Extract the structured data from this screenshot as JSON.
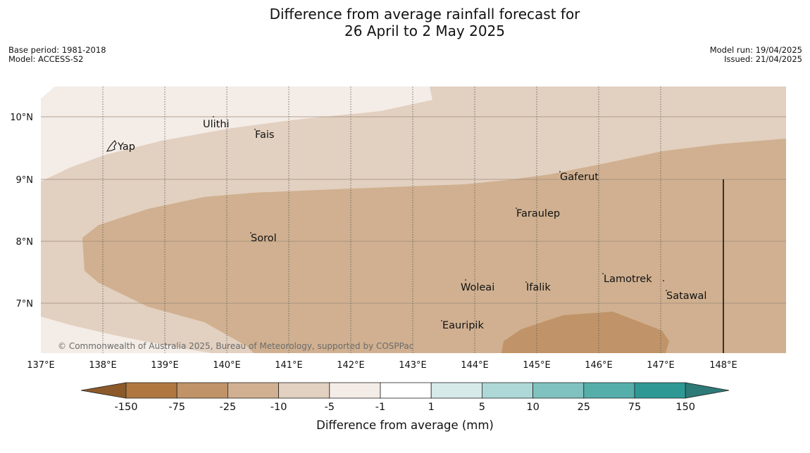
{
  "title_line1": "Difference from average rainfall forecast for",
  "title_line2": "26 April to 2 May 2025",
  "base_period": "Base period: 1981-2018",
  "model": "Model: ACCESS-S2",
  "model_run": "Model run: 19/04/2025",
  "issued": "Issued: 21/04/2025",
  "copyright": "© Commonwealth of Australia 2025, Bureau of Meteorology, supported by COSPPac",
  "map": {
    "lon_range": [
      137,
      149
    ],
    "lat_range": [
      6.2,
      10.5
    ],
    "lon_ticks": [
      "137°E",
      "138°E",
      "139°E",
      "140°E",
      "141°E",
      "142°E",
      "143°E",
      "144°E",
      "145°E",
      "146°E",
      "147°E",
      "148°E"
    ],
    "lat_ticks": [
      "10°N",
      "9°N",
      "8°N",
      "7°N"
    ],
    "places": [
      {
        "name": "Yap",
        "lon": 138.2,
        "lat": 9.5
      },
      {
        "name": "Ulithi",
        "lon": 139.6,
        "lat": 9.85
      },
      {
        "name": "Fais",
        "lon": 140.5,
        "lat": 9.75
      },
      {
        "name": "Gaferut",
        "lon": 145.4,
        "lat": 9.05
      },
      {
        "name": "Faraulep",
        "lon": 144.6,
        "lat": 8.45
      },
      {
        "name": "Sorol",
        "lon": 140.4,
        "lat": 8.05
      },
      {
        "name": "Lamotrek",
        "lon": 146.3,
        "lat": 7.4
      },
      {
        "name": "Woleai",
        "lon": 143.9,
        "lat": 7.3
      },
      {
        "name": "Ifalik",
        "lon": 144.4,
        "lat": 7.25
      },
      {
        "name": "Satawal",
        "lon": 147.1,
        "lat": 7.15
      },
      {
        "name": "Eauripik",
        "lon": 143.0,
        "lat": 6.65
      }
    ]
  },
  "colorbar": {
    "title": "Difference from average (mm)",
    "labels": [
      "-150",
      "-75",
      "-25",
      "-10",
      "-5",
      "-1",
      "1",
      "5",
      "10",
      "25",
      "75",
      "150"
    ],
    "colors": [
      "#8c5a2a",
      "#b07840",
      "#c09468",
      "#d0b090",
      "#e2d0c0",
      "#f4ece6",
      "#ffffff",
      "#d6ebe9",
      "#aed8d8",
      "#80c2c0",
      "#56aeab",
      "#2e9994",
      "#2d7a78"
    ]
  }
}
